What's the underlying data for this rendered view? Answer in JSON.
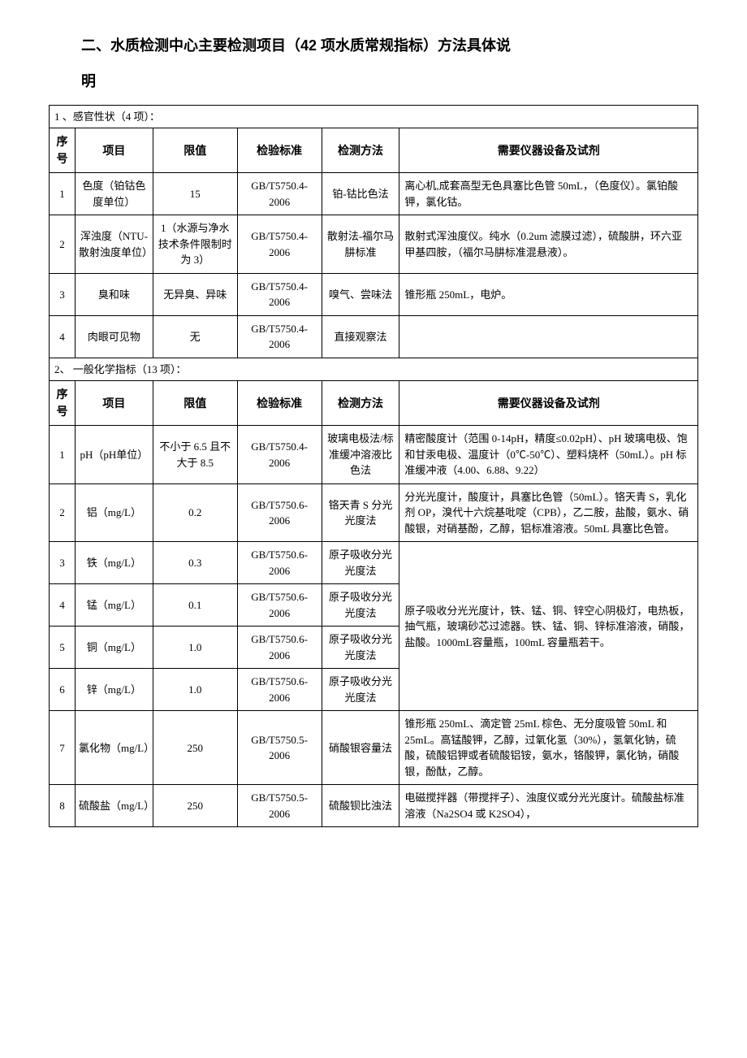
{
  "title": "二、水质检测中心主要检测项目（42 项水质常规指标）方法具体说",
  "title_sub": "明",
  "section1": {
    "header": "1 、感官性状（4 项）：",
    "cols": {
      "seq": "序号",
      "item": "项目",
      "limit": "限值",
      "std": "检验标准",
      "method": "检测方法",
      "equip": "需要仪器设备及试剂"
    },
    "rows": [
      {
        "seq": "1",
        "item": "色度（铂钴色度单位）",
        "limit": "15",
        "std": "GB/T5750.4-2006",
        "method": "铂-钴比色法",
        "equip": "离心机,成套高型无色具塞比色管 50mL，（色度仪）。氯铂酸钾，氯化钴。"
      },
      {
        "seq": "2",
        "item": "浑浊度（NTU-散射浊度单位）",
        "limit": "1（水源与净水技术条件限制时为 3）",
        "std": "GB/T5750.4-2006",
        "method": "散射法-福尔马肼标准",
        "equip": "散射式浑浊度仪。纯水（0.2um 滤膜过滤），硫酸肼，环六亚甲基四胺，（福尔马肼标准混悬液）。"
      },
      {
        "seq": "3",
        "item": "臭和味",
        "limit": "无异臭、异味",
        "std": "GB/T5750.4-2006",
        "method": "嗅气、尝味法",
        "equip": "锥形瓶 250mL，电炉。"
      },
      {
        "seq": "4",
        "item": "肉眼可见物",
        "limit": "无",
        "std": "GB/T5750.4-2006",
        "method": "直接观察法",
        "equip": ""
      }
    ]
  },
  "section2": {
    "header": "2、 一般化学指标（13 项）：",
    "cols": {
      "seq": "序号",
      "item": "项目",
      "limit": "限值",
      "std": "检验标准",
      "method": "检测方法",
      "equip": "需要仪器设备及试剂"
    },
    "rows": [
      {
        "seq": "1",
        "item": "pH（pH单位）",
        "limit": "不小于 6.5 且不大于 8.5",
        "std": "GB/T5750.4-2006",
        "method": "玻璃电极法/标准缓冲溶液比色法",
        "equip": "精密酸度计（范围 0-14pH，精度≤0.02pH）、pH 玻璃电极、饱和甘汞电极、温度计（0℃-50℃）、塑料烧杯（50mL）。pH 标准缓冲液（4.00、6.88、9.22）"
      },
      {
        "seq": "2",
        "item": "铝（mg/L）",
        "limit": "0.2",
        "std": "GB/T5750.6-2006",
        "method": "铬天青 S 分光光度法",
        "equip": "分光光度计，酸度计，具塞比色管（50mL）。铬天青 S，乳化剂 OP，溴代十六烷基吡啶（CPB），乙二胺，盐酸，氨水、硝酸银，对硝基酚，乙醇，铝标准溶液。50mL 具塞比色管。"
      },
      {
        "seq": "3",
        "item": "铁（mg/L）",
        "limit": "0.3",
        "std": "GB/T5750.6-2006",
        "method": "原子吸收分光光度法",
        "equip_merged": "原子吸收分光光度计，铁、锰、铜、锌空心阴极灯，电热板，抽气瓶，玻璃砂芯过滤器。铁、锰、铜、锌标准溶液，硝酸，盐酸。1000mL容量瓶，100mL 容量瓶若干。"
      },
      {
        "seq": "4",
        "item": "锰（mg/L）",
        "limit": "0.1",
        "std": "GB/T5750.6-2006",
        "method": "原子吸收分光光度法"
      },
      {
        "seq": "5",
        "item": "铜（mg/L）",
        "limit": "1.0",
        "std": "GB/T5750.6-2006",
        "method": "原子吸收分光光度法"
      },
      {
        "seq": "6",
        "item": "锌（mg/L）",
        "limit": "1.0",
        "std": "GB/T5750.6-2006",
        "method": "原子吸收分光光度法"
      },
      {
        "seq": "7",
        "item": "氯化物（mg/L）",
        "limit": "250",
        "std": "GB/T5750.5-2006",
        "method": "硝酸银容量法",
        "equip": "锥形瓶 250mL、滴定管 25mL 棕色、无分度吸管 50mL 和 25mL。高锰酸钾，乙醇，过氧化氢（30%），氢氧化钠，硫酸，硫酸铝钾或者硫酸铝铵，氨水，铬酸钾，氯化钠，硝酸银，酚酞，乙醇。"
      },
      {
        "seq": "8",
        "item": "硫酸盐（mg/L）",
        "limit": "250",
        "std": "GB/T5750.5-2006",
        "method": "硫酸钡比浊法",
        "equip": "电磁搅拌器（带搅拌子）、浊度仪或分光光度计。硫酸盐标准溶液（Na2SO4 或 K2SO4），"
      }
    ]
  }
}
